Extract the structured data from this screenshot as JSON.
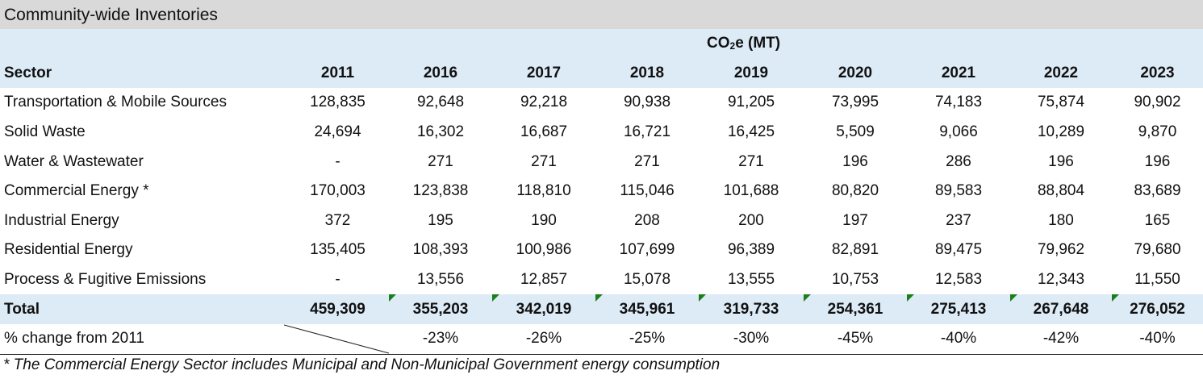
{
  "title": "Community-wide Inventories",
  "unit_header": {
    "prefix": "CO",
    "sub": "2",
    "suffix": "e (MT)"
  },
  "columns": {
    "sector": "Sector",
    "years": [
      "2011",
      "2016",
      "2017",
      "2018",
      "2019",
      "2020",
      "2021",
      "2022",
      "2023"
    ]
  },
  "rows": [
    {
      "sector": "Transportation & Mobile Sources",
      "values": [
        "128,835",
        "92,648",
        "92,218",
        "90,938",
        "91,205",
        "73,995",
        "74,183",
        "75,874",
        "90,902"
      ]
    },
    {
      "sector": "Solid Waste",
      "values": [
        "24,694",
        "16,302",
        "16,687",
        "16,721",
        "16,425",
        "5,509",
        "9,066",
        "10,289",
        "9,870"
      ]
    },
    {
      "sector": "Water & Wastewater",
      "values": [
        "-",
        "271",
        "271",
        "271",
        "271",
        "196",
        "286",
        "196",
        "196"
      ]
    },
    {
      "sector": "Commercial Energy *",
      "values": [
        "170,003",
        "123,838",
        "118,810",
        "115,046",
        "101,688",
        "80,820",
        "89,583",
        "88,804",
        "83,689"
      ]
    },
    {
      "sector": "Industrial Energy",
      "values": [
        "372",
        "195",
        "190",
        "208",
        "200",
        "197",
        "237",
        "180",
        "165"
      ]
    },
    {
      "sector": "Residential Energy",
      "values": [
        "135,405",
        "108,393",
        "100,986",
        "107,699",
        "96,389",
        "82,891",
        "89,475",
        "79,962",
        "79,680"
      ]
    },
    {
      "sector": "Process & Fugitive Emissions",
      "values": [
        "-",
        "13,556",
        "12,857",
        "15,078",
        "13,555",
        "10,753",
        "12,583",
        "12,343",
        "11,550"
      ]
    }
  ],
  "total": {
    "label": "Total",
    "values": [
      "459,309",
      "355,203",
      "342,019",
      "345,961",
      "319,733",
      "254,361",
      "275,413",
      "267,648",
      "276,052"
    ]
  },
  "pct_change": {
    "label": "% change from 2011",
    "values": [
      "",
      "-23%",
      "-26%",
      "-25%",
      "-30%",
      "-45%",
      "-40%",
      "-42%",
      "-40%"
    ]
  },
  "footnote": "* The Commercial Energy Sector includes Municipal and Non-Municipal Government energy consumption",
  "colors": {
    "title_bg": "#d9d9d9",
    "header_bg": "#ddebf7",
    "indicator": "#1a7f1a"
  }
}
